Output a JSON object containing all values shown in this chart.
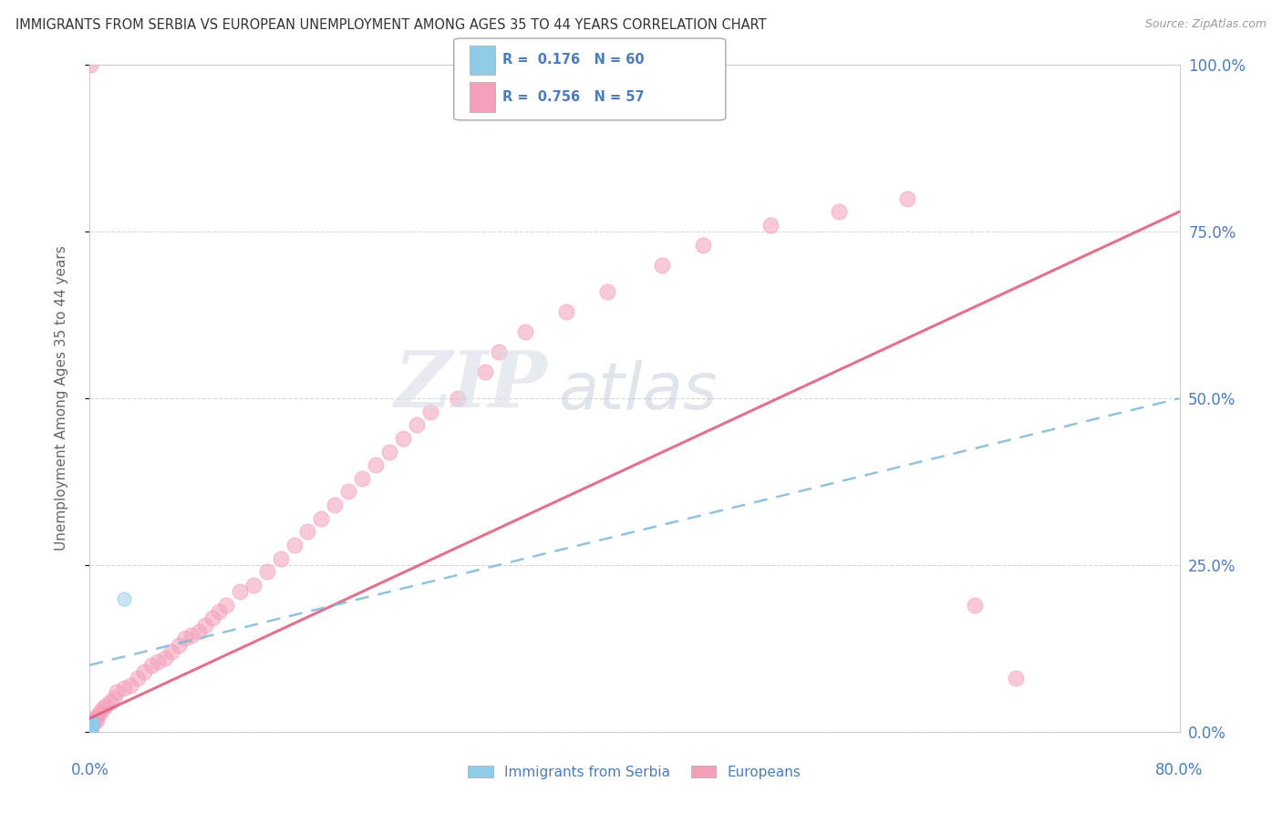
{
  "title": "IMMIGRANTS FROM SERBIA VS EUROPEAN UNEMPLOYMENT AMONG AGES 35 TO 44 YEARS CORRELATION CHART",
  "source": "Source: ZipAtlas.com",
  "ylabel": "Unemployment Among Ages 35 to 44 years",
  "legend_serbia": "Immigrants from Serbia",
  "legend_europeans": "Europeans",
  "r_serbia": 0.176,
  "n_serbia": 60,
  "r_europeans": 0.756,
  "n_europeans": 57,
  "color_serbia": "#90cce8",
  "color_europeans": "#f4a0b8",
  "color_line_serbia": "#80b8d8",
  "color_line_europeans": "#e06080",
  "color_text": "#4a7cc0",
  "watermark_zip": "ZIP",
  "watermark_atlas": "atlas",
  "xlim": [
    0,
    80
  ],
  "ylim": [
    0,
    100
  ],
  "ytick_vals": [
    0,
    25,
    50,
    75,
    100
  ],
  "ytick_labels": [
    "0.0%",
    "25.0%",
    "50.0%",
    "75.0%",
    "100.0%"
  ],
  "serbia_x": [
    0.05,
    0.08,
    0.06,
    0.04,
    0.07,
    0.05,
    0.09,
    0.06,
    0.05,
    0.07,
    0.04,
    0.06,
    0.08,
    0.05,
    0.06,
    0.07,
    0.05,
    0.04,
    0.06,
    0.05,
    0.08,
    0.05,
    0.06,
    0.07,
    0.05,
    0.04,
    0.06,
    0.05,
    0.07,
    0.05,
    0.06,
    0.04,
    0.05,
    0.08,
    0.06,
    0.05,
    0.07,
    0.06,
    0.05,
    0.04,
    0.06,
    0.05,
    0.07,
    0.06,
    0.08,
    0.05,
    0.04,
    0.06,
    0.05,
    0.07,
    0.06,
    0.05,
    0.04,
    0.06,
    0.05,
    0.07,
    0.06,
    0.08,
    2.5,
    0.05
  ],
  "serbia_y": [
    0.5,
    1.0,
    0.8,
    0.3,
    1.2,
    0.6,
    0.9,
    0.4,
    0.7,
    1.1,
    0.5,
    0.8,
    1.3,
    0.6,
    0.9,
    1.0,
    0.4,
    0.7,
    0.8,
    0.5,
    1.2,
    0.6,
    0.9,
    1.0,
    0.5,
    0.4,
    0.7,
    0.6,
    1.1,
    0.5,
    0.8,
    0.4,
    0.6,
    1.3,
    0.9,
    0.5,
    1.0,
    0.8,
    0.6,
    0.3,
    0.7,
    0.5,
    1.1,
    0.9,
    1.4,
    0.6,
    0.4,
    0.8,
    0.5,
    1.0,
    0.9,
    0.6,
    0.4,
    0.7,
    0.5,
    1.1,
    0.8,
    1.3,
    20.0,
    0.6
  ],
  "europeans_x": [
    0.1,
    0.2,
    0.3,
    0.4,
    0.5,
    0.6,
    0.8,
    1.0,
    1.2,
    1.5,
    1.8,
    2.0,
    2.5,
    3.0,
    3.5,
    4.0,
    4.5,
    5.0,
    5.5,
    6.0,
    6.5,
    7.0,
    7.5,
    8.0,
    8.5,
    9.0,
    9.5,
    10.0,
    11.0,
    12.0,
    13.0,
    14.0,
    15.0,
    16.0,
    17.0,
    18.0,
    19.0,
    20.0,
    21.0,
    22.0,
    23.0,
    24.0,
    25.0,
    27.0,
    29.0,
    30.0,
    32.0,
    35.0,
    38.0,
    42.0,
    45.0,
    50.0,
    55.0,
    60.0,
    65.0,
    68.0,
    0.05
  ],
  "europeans_y": [
    0.5,
    1.0,
    1.5,
    2.0,
    1.8,
    2.5,
    3.0,
    3.5,
    4.0,
    4.5,
    5.0,
    6.0,
    6.5,
    7.0,
    8.0,
    9.0,
    10.0,
    10.5,
    11.0,
    12.0,
    13.0,
    14.0,
    14.5,
    15.0,
    16.0,
    17.0,
    18.0,
    19.0,
    21.0,
    22.0,
    24.0,
    26.0,
    28.0,
    30.0,
    32.0,
    34.0,
    36.0,
    38.0,
    40.0,
    42.0,
    44.0,
    46.0,
    48.0,
    50.0,
    54.0,
    57.0,
    60.0,
    63.0,
    66.0,
    70.0,
    73.0,
    76.0,
    78.0,
    80.0,
    19.0,
    8.0,
    100.0
  ],
  "line_pink_x0": 0,
  "line_pink_y0": 2,
  "line_pink_x1": 80,
  "line_pink_y1": 78,
  "line_blue_x0": 0,
  "line_blue_y0": 10,
  "line_blue_x1": 80,
  "line_blue_y1": 50
}
